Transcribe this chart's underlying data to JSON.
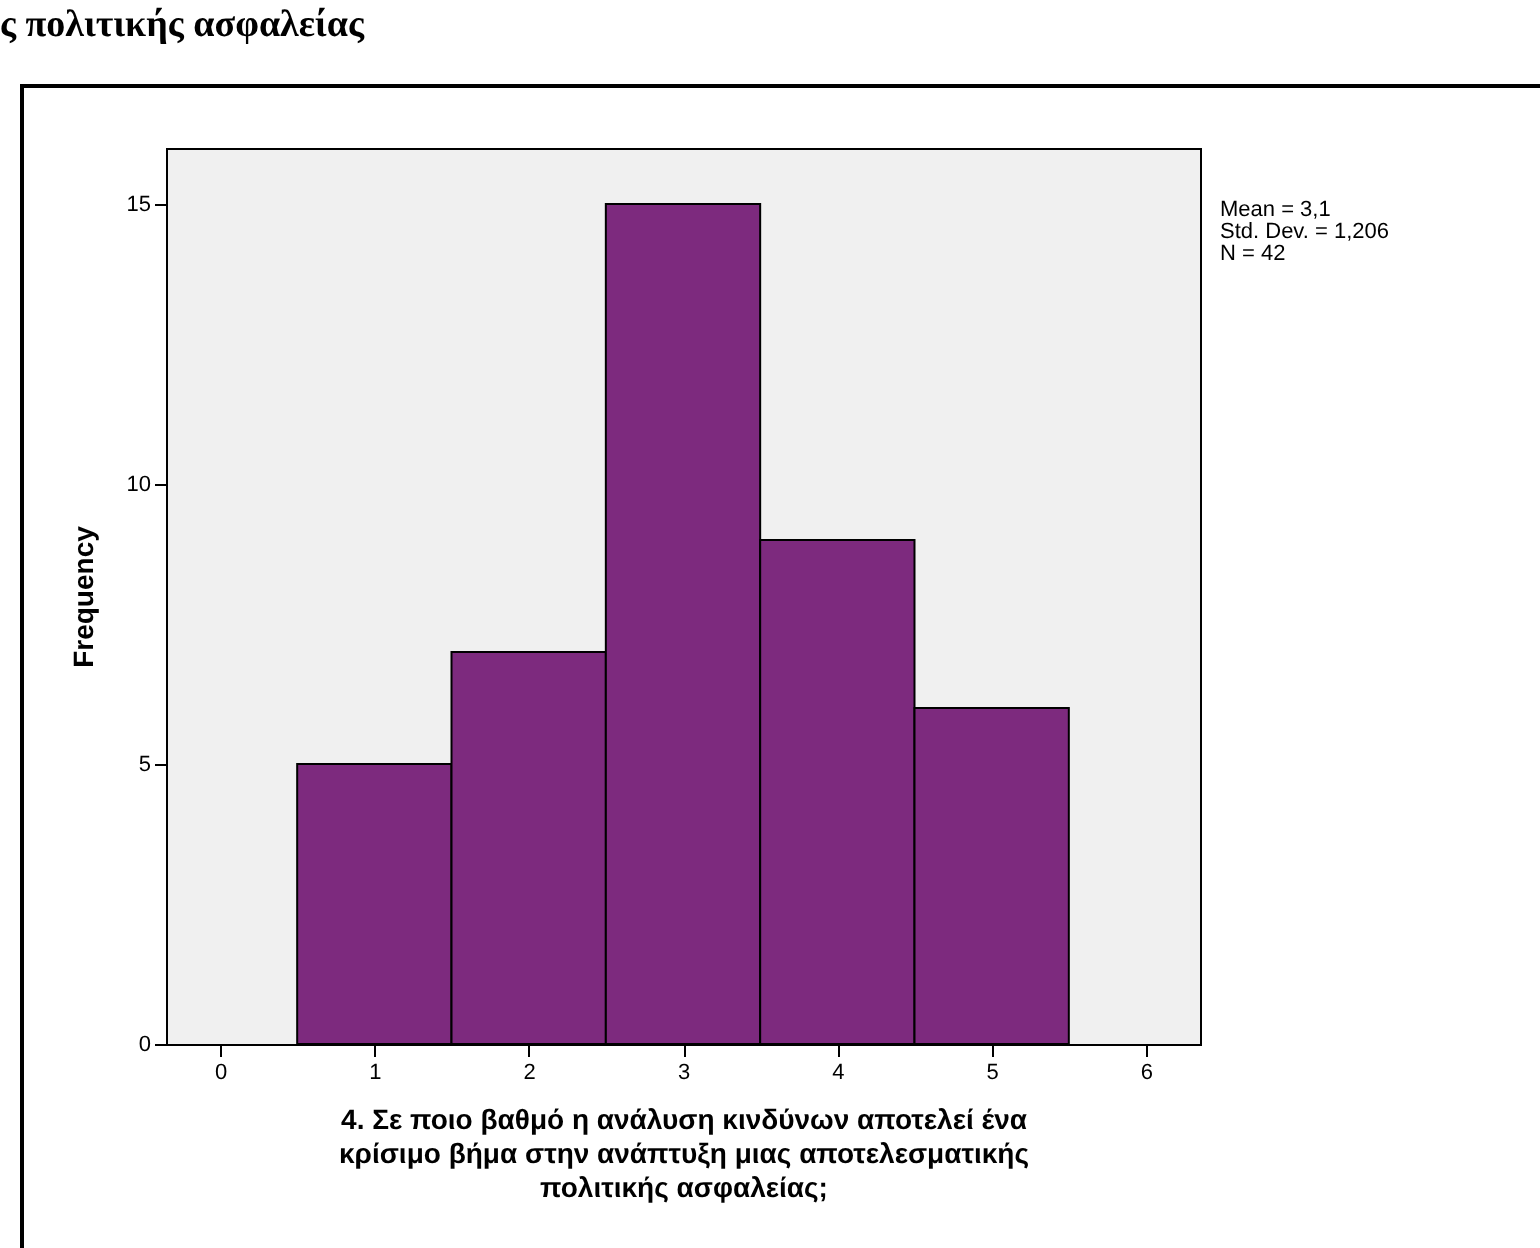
{
  "chart_data": {
    "type": "histogram",
    "title": "ς πολιτικής ασφαλείας",
    "xlabel": "4. Σε ποιο βαθμό η ανάλυση κινδύνων αποτελεί ένα κρίσιμο βήμα στην ανάπτυξη μιας αποτελεσματικής πολιτικής ασφαλείας;",
    "ylabel": "Frequency",
    "bins": [
      0.5,
      1.5,
      2.5,
      3.5,
      4.5,
      5.5
    ],
    "values": [
      5,
      7,
      15,
      9,
      6
    ],
    "color": "#7d2a7e",
    "xlim": [
      -0.35,
      6.35
    ],
    "xticks": [
      0,
      1,
      2,
      3,
      4,
      5,
      6
    ],
    "ylim": [
      0,
      16
    ],
    "yticks": [
      0,
      5,
      10,
      15
    ],
    "grid": false,
    "annotations": [
      "Mean = 3,1",
      "Std. Dev. = 1,206",
      "N = 42"
    ]
  }
}
